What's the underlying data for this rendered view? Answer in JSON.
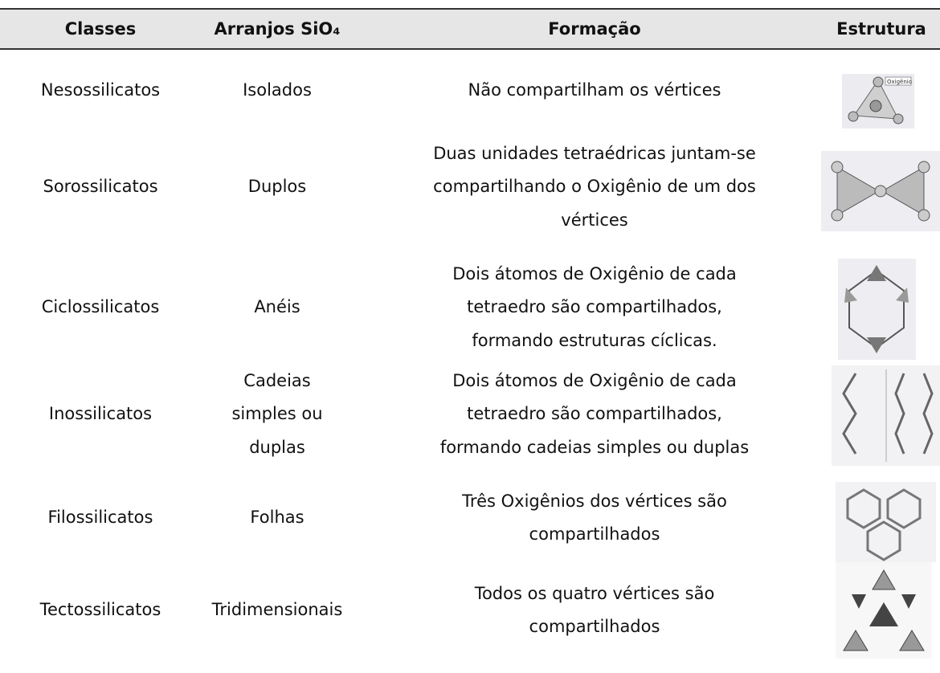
{
  "table": {
    "header": [
      "Classes",
      "Arranjos SiO₄",
      "Formação",
      "Estrutura"
    ],
    "rows": [
      [
        [
          "Nesossilicatos"
        ],
        [
          "Isolados"
        ],
        [
          "Não compartilham os vértices"
        ]
      ],
      [
        [
          "Sorossilicatos"
        ],
        [
          "Duplos"
        ],
        [
          "Duas unidades tetraédricas juntam-se",
          "compartilhando o Oxigênio de um dos",
          "vértices"
        ]
      ],
      [
        [
          "Ciclossilicatos"
        ],
        [
          "Anéis"
        ],
        [
          "Dois átomos de Oxigênio de cada",
          "tetraedro são compartilhados,",
          "formando estruturas cíclicas."
        ]
      ],
      [
        [
          "Inossilicatos"
        ],
        [
          "Cadeias",
          "simples ou",
          "duplas"
        ],
        [
          "Dois átomos de Oxigênio de cada",
          "tetraedro são compartilhados,",
          "formando cadeias simples ou duplas"
        ]
      ],
      [
        [
          "Filossilicatos"
        ],
        [
          "Folhas"
        ],
        [
          "Três Oxigênios dos vértices são",
          "compartilhados"
        ]
      ],
      [
        [
          "Tectossilicatos"
        ],
        [
          "Tridimensionais"
        ],
        [
          "Todos os quatro vértices são",
          "compartilhados"
        ]
      ]
    ],
    "image_label": "Oxigênio"
  }
}
